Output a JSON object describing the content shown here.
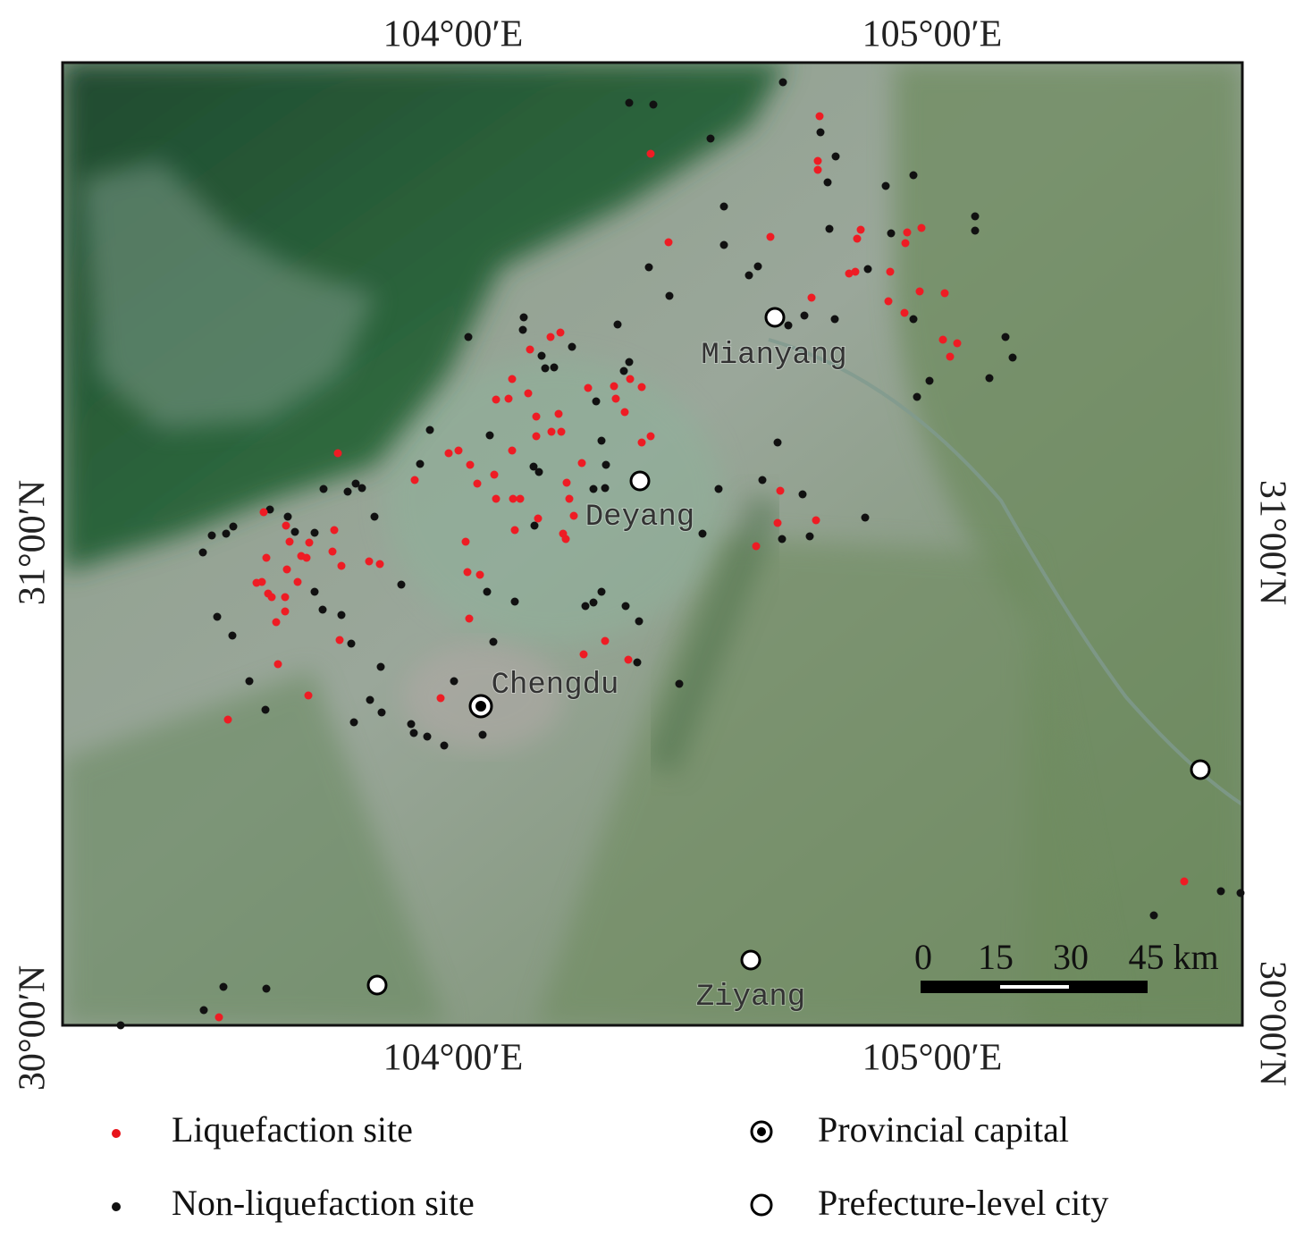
{
  "map": {
    "x_ticks": [
      "104°00′E",
      "105°00′E"
    ],
    "y_ticks": [
      "31°00′N",
      "30°00′N"
    ],
    "cities": [
      "Mianyang",
      "Deyang",
      "Chengdu",
      "Ziyang"
    ],
    "scale_bar": [
      "0",
      "15",
      "30",
      "45 km"
    ]
  },
  "legend": [
    "Liquefaction site",
    "Non-liquefaction site",
    "Provincial capital",
    "Prefecture-level city"
  ]
}
